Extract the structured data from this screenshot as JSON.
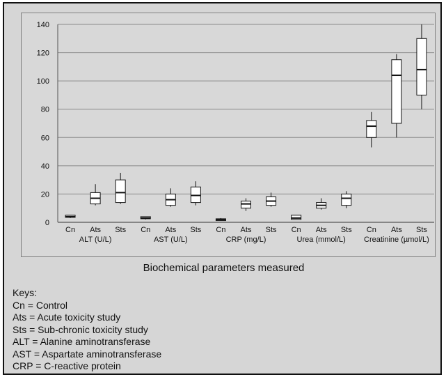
{
  "chart_data": {
    "type": "boxplot",
    "title": "",
    "xlabel": "Biochemical parameters measured",
    "ylabel": "",
    "ylim": [
      0,
      140
    ],
    "yticks": [
      0,
      20,
      40,
      60,
      80,
      100,
      120,
      140
    ],
    "grid": true,
    "legend": "none",
    "box_color": "#ffffff",
    "line_color": "#111111",
    "groups": [
      {
        "label": "ALT (U/L)",
        "boxes": [
          {
            "label": "Cn",
            "min": 3,
            "q1": 3.5,
            "median": 4,
            "q3": 5,
            "max": 5
          },
          {
            "label": "Ats",
            "min": 12,
            "q1": 13,
            "median": 17,
            "q3": 21,
            "max": 27
          },
          {
            "label": "Sts",
            "min": 13,
            "q1": 14,
            "median": 21,
            "q3": 30,
            "max": 35
          }
        ]
      },
      {
        "label": "AST (U/L)",
        "boxes": [
          {
            "label": "Cn",
            "min": 2,
            "q1": 2.5,
            "median": 3,
            "q3": 4,
            "max": 4
          },
          {
            "label": "Ats",
            "min": 11,
            "q1": 12,
            "median": 16,
            "q3": 20,
            "max": 24
          },
          {
            "label": "Sts",
            "min": 12,
            "q1": 14,
            "median": 19,
            "q3": 25,
            "max": 29
          }
        ]
      },
      {
        "label": "CRP (mg/L)",
        "boxes": [
          {
            "label": "Cn",
            "min": 1,
            "q1": 1.2,
            "median": 2,
            "q3": 2.5,
            "max": 3
          },
          {
            "label": "Ats",
            "min": 8,
            "q1": 10,
            "median": 13,
            "q3": 15,
            "max": 17
          },
          {
            "label": "Sts",
            "min": 11,
            "q1": 12,
            "median": 15,
            "q3": 18,
            "max": 21
          }
        ]
      },
      {
        "label": "Urea (mmol/L)",
        "boxes": [
          {
            "label": "Cn",
            "min": 2,
            "q1": 2,
            "median": 3,
            "q3": 5,
            "max": 5
          },
          {
            "label": "Ats",
            "min": 9,
            "q1": 10,
            "median": 12,
            "q3": 14,
            "max": 17
          },
          {
            "label": "Sts",
            "min": 10,
            "q1": 12,
            "median": 17,
            "q3": 20,
            "max": 22
          }
        ]
      },
      {
        "label": "Creatinine (µmol/L)",
        "boxes": [
          {
            "label": "Cn",
            "min": 53,
            "q1": 60,
            "median": 68,
            "q3": 72,
            "max": 78
          },
          {
            "label": "Ats",
            "min": 60,
            "q1": 70,
            "median": 104,
            "q3": 115,
            "max": 119
          },
          {
            "label": "Sts",
            "min": 80,
            "q1": 90,
            "median": 108,
            "q3": 130,
            "max": 140
          }
        ]
      }
    ]
  },
  "keys": {
    "heading": "Keys:",
    "items": [
      "Cn = Control",
      "Ats = Acute toxicity study",
      "Sts = Sub-chronic toxicity study",
      "ALT = Alanine aminotransferase",
      "AST = Aspartate aminotransferase",
      "CRP = C-reactive protein"
    ]
  }
}
